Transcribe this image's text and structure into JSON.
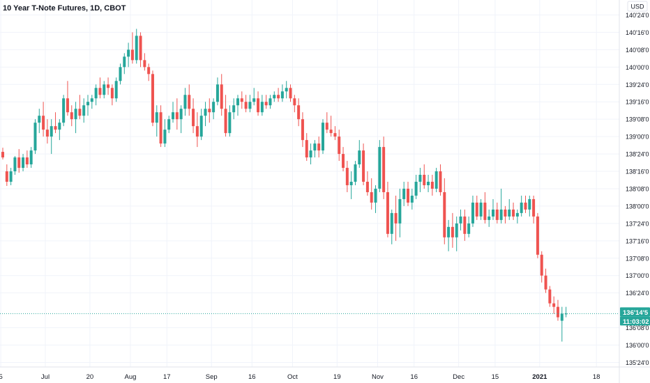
{
  "header": {
    "title": "10 Year T-Note Futures, 1D, CBOT",
    "currency": "USD"
  },
  "colors": {
    "up": "#26a69a",
    "down": "#ef5350",
    "grid": "#f0f3fa",
    "axis_border": "#e0e3eb",
    "price_line": "#26a69a",
    "price_tag_bg": "#26a69a",
    "tag_text": "#ffffff"
  },
  "price_tag": {
    "price": "136'14'5",
    "countdown": "11:03:02"
  },
  "chart_data": {
    "type": "candlestick",
    "title": "10 Year T-Note Futures, 1D, CBOT",
    "y_unit": "32nds",
    "ylim": [
      135.6,
      140.875
    ],
    "y_ticks": [
      {
        "value": 135.75,
        "label": "135'24'0"
      },
      {
        "value": 136.0,
        "label": "136'00'0"
      },
      {
        "value": 136.25,
        "label": "136'08'0"
      },
      {
        "value": 136.75,
        "label": "136'24'0"
      },
      {
        "value": 137.0,
        "label": "137'00'0"
      },
      {
        "value": 137.25,
        "label": "137'08'0"
      },
      {
        "value": 137.5,
        "label": "137'16'0"
      },
      {
        "value": 137.75,
        "label": "137'24'0"
      },
      {
        "value": 138.0,
        "label": "138'00'0"
      },
      {
        "value": 138.25,
        "label": "138'08'0"
      },
      {
        "value": 138.5,
        "label": "138'16'0"
      },
      {
        "value": 138.75,
        "label": "138'24'0"
      },
      {
        "value": 139.0,
        "label": "139'00'0"
      },
      {
        "value": 139.25,
        "label": "139'08'0"
      },
      {
        "value": 139.5,
        "label": "139'16'0"
      },
      {
        "value": 139.75,
        "label": "139'24'0"
      },
      {
        "value": 140.0,
        "label": "140'00'0"
      },
      {
        "value": 140.25,
        "label": "140'08'0"
      },
      {
        "value": 140.5,
        "label": "140'16'0"
      },
      {
        "value": 140.75,
        "label": "140'24'0"
      }
    ],
    "x_ticks": [
      {
        "index": -0.5,
        "label": "5",
        "bold": false
      },
      {
        "index": 10.5,
        "label": "Jul",
        "bold": false
      },
      {
        "index": 21.5,
        "label": "20",
        "bold": false
      },
      {
        "index": 31.5,
        "label": "Aug",
        "bold": false
      },
      {
        "index": 40.5,
        "label": "17",
        "bold": false
      },
      {
        "index": 51.5,
        "label": "Sep",
        "bold": false
      },
      {
        "index": 61.5,
        "label": "16",
        "bold": false
      },
      {
        "index": 71.5,
        "label": "Oct",
        "bold": false
      },
      {
        "index": 82.5,
        "label": "19",
        "bold": false
      },
      {
        "index": 92.5,
        "label": "Nov",
        "bold": false
      },
      {
        "index": 101.5,
        "label": "16",
        "bold": false
      },
      {
        "index": 112.5,
        "label": "Dec",
        "bold": false
      },
      {
        "index": 121.5,
        "label": "15",
        "bold": false
      },
      {
        "index": 132.5,
        "label": "2021",
        "bold": true
      },
      {
        "index": 146.5,
        "label": "18",
        "bold": false
      }
    ],
    "last_price_value": 136.453,
    "candles": [
      [
        138.78,
        138.84,
        138.67,
        138.7
      ],
      [
        138.5,
        138.6,
        138.29,
        138.35
      ],
      [
        138.35,
        138.55,
        138.3,
        138.5
      ],
      [
        138.5,
        138.72,
        138.45,
        138.7
      ],
      [
        138.7,
        138.82,
        138.48,
        138.55
      ],
      [
        138.55,
        138.75,
        138.5,
        138.7
      ],
      [
        138.7,
        138.8,
        138.55,
        138.6
      ],
      [
        138.6,
        138.85,
        138.55,
        138.8
      ],
      [
        138.8,
        139.25,
        138.75,
        139.2
      ],
      [
        139.2,
        139.4,
        139.05,
        139.3
      ],
      [
        139.3,
        139.5,
        139.0,
        139.1
      ],
      [
        139.1,
        139.25,
        138.9,
        139.0
      ],
      [
        139.0,
        139.25,
        138.75,
        139.15
      ],
      [
        139.15,
        139.35,
        139.05,
        139.1
      ],
      [
        139.1,
        139.25,
        138.95,
        139.2
      ],
      [
        139.2,
        139.6,
        139.15,
        139.55
      ],
      [
        139.55,
        139.8,
        139.3,
        139.35
      ],
      [
        139.35,
        139.45,
        139.15,
        139.25
      ],
      [
        139.25,
        139.5,
        139.05,
        139.4
      ],
      [
        139.4,
        139.6,
        139.25,
        139.3
      ],
      [
        139.3,
        139.55,
        139.2,
        139.45
      ],
      [
        139.45,
        139.6,
        139.3,
        139.5
      ],
      [
        139.5,
        139.6,
        139.4,
        139.55
      ],
      [
        139.55,
        139.75,
        139.45,
        139.7
      ],
      [
        139.7,
        139.85,
        139.55,
        139.6
      ],
      [
        139.6,
        139.8,
        139.55,
        139.75
      ],
      [
        139.75,
        139.85,
        139.6,
        139.7
      ],
      [
        139.7,
        139.75,
        139.45,
        139.55
      ],
      [
        139.55,
        139.85,
        139.5,
        139.8
      ],
      [
        139.8,
        140.05,
        139.75,
        140.0
      ],
      [
        140.0,
        140.2,
        139.9,
        140.15
      ],
      [
        140.15,
        140.35,
        140.0,
        140.25
      ],
      [
        140.25,
        140.5,
        140.05,
        140.1
      ],
      [
        140.1,
        140.55,
        140.05,
        140.45
      ],
      [
        140.45,
        140.5,
        140.0,
        140.1
      ],
      [
        140.1,
        140.2,
        139.95,
        140.0
      ],
      [
        140.0,
        140.05,
        139.8,
        139.9
      ],
      [
        139.9,
        139.95,
        139.15,
        139.2
      ],
      [
        139.2,
        139.45,
        139.0,
        139.35
      ],
      [
        139.35,
        139.45,
        138.85,
        138.9
      ],
      [
        138.9,
        139.25,
        138.85,
        139.1
      ],
      [
        139.1,
        139.3,
        139.05,
        139.25
      ],
      [
        139.25,
        139.5,
        139.2,
        139.35
      ],
      [
        139.35,
        139.55,
        139.1,
        139.25
      ],
      [
        139.25,
        139.45,
        139.05,
        139.4
      ],
      [
        139.4,
        139.7,
        139.3,
        139.6
      ],
      [
        139.6,
        139.75,
        139.3,
        139.4
      ],
      [
        139.4,
        139.55,
        139.05,
        139.15
      ],
      [
        139.15,
        139.35,
        138.85,
        139.0
      ],
      [
        139.0,
        139.4,
        138.95,
        139.3
      ],
      [
        139.3,
        139.5,
        139.15,
        139.4
      ],
      [
        139.4,
        139.55,
        139.2,
        139.35
      ],
      [
        139.35,
        139.55,
        139.25,
        139.5
      ],
      [
        139.5,
        139.85,
        139.45,
        139.75
      ],
      [
        139.75,
        139.9,
        139.3,
        139.4
      ],
      [
        139.4,
        139.6,
        139.0,
        139.05
      ],
      [
        139.05,
        139.45,
        139.0,
        139.35
      ],
      [
        139.35,
        139.55,
        139.25,
        139.45
      ],
      [
        139.45,
        139.6,
        139.3,
        139.55
      ],
      [
        139.55,
        139.65,
        139.4,
        139.5
      ],
      [
        139.5,
        139.6,
        139.35,
        139.4
      ],
      [
        139.4,
        139.6,
        139.35,
        139.5
      ],
      [
        139.5,
        139.7,
        139.45,
        139.55
      ],
      [
        139.55,
        139.65,
        139.3,
        139.35
      ],
      [
        139.35,
        139.6,
        139.3,
        139.5
      ],
      [
        139.5,
        139.6,
        139.4,
        139.45
      ],
      [
        139.45,
        139.6,
        139.4,
        139.55
      ],
      [
        139.55,
        139.65,
        139.5,
        139.6
      ],
      [
        139.6,
        139.7,
        139.5,
        139.55
      ],
      [
        139.55,
        139.75,
        139.5,
        139.65
      ],
      [
        139.65,
        139.8,
        139.55,
        139.7
      ],
      [
        139.7,
        139.75,
        139.5,
        139.55
      ],
      [
        139.55,
        139.6,
        139.35,
        139.45
      ],
      [
        139.45,
        139.55,
        139.15,
        139.25
      ],
      [
        139.25,
        139.35,
        138.85,
        138.95
      ],
      [
        138.95,
        139.05,
        138.65,
        138.7
      ],
      [
        138.7,
        138.9,
        138.6,
        138.8
      ],
      [
        138.8,
        138.95,
        138.7,
        138.9
      ],
      [
        138.9,
        139.0,
        138.7,
        138.8
      ],
      [
        138.8,
        139.25,
        138.75,
        139.2
      ],
      [
        139.2,
        139.35,
        139.05,
        139.1
      ],
      [
        139.1,
        139.3,
        139.0,
        139.05
      ],
      [
        139.05,
        139.15,
        138.95,
        139.0
      ],
      [
        139.0,
        139.1,
        138.65,
        138.75
      ],
      [
        138.75,
        138.85,
        138.5,
        138.55
      ],
      [
        138.55,
        138.65,
        138.2,
        138.3
      ],
      [
        138.3,
        138.5,
        138.1,
        138.35
      ],
      [
        138.35,
        138.65,
        138.3,
        138.6
      ],
      [
        138.6,
        138.95,
        138.55,
        138.8
      ],
      [
        138.8,
        138.9,
        138.3,
        138.35
      ],
      [
        138.35,
        138.5,
        138.15,
        138.2
      ],
      [
        138.2,
        138.4,
        137.95,
        138.05
      ],
      [
        138.05,
        138.3,
        137.9,
        138.25
      ],
      [
        138.25,
        138.95,
        138.2,
        138.85
      ],
      [
        138.85,
        139.0,
        138.1,
        138.2
      ],
      [
        138.2,
        138.35,
        137.55,
        137.6
      ],
      [
        137.6,
        137.95,
        137.45,
        137.9
      ],
      [
        137.9,
        138.15,
        137.5,
        137.75
      ],
      [
        137.75,
        138.25,
        137.55,
        138.1
      ],
      [
        138.1,
        138.35,
        138.0,
        138.25
      ],
      [
        138.25,
        138.35,
        138.0,
        138.05
      ],
      [
        138.05,
        138.25,
        137.95,
        138.15
      ],
      [
        138.15,
        138.45,
        138.1,
        138.35
      ],
      [
        138.35,
        138.55,
        138.2,
        138.45
      ],
      [
        138.45,
        138.6,
        138.25,
        138.3
      ],
      [
        138.3,
        138.45,
        138.2,
        138.35
      ],
      [
        138.35,
        138.45,
        138.15,
        138.25
      ],
      [
        138.25,
        138.55,
        138.2,
        138.5
      ],
      [
        138.5,
        138.6,
        138.15,
        138.2
      ],
      [
        138.2,
        138.4,
        137.45,
        137.55
      ],
      [
        137.55,
        137.8,
        137.35,
        137.7
      ],
      [
        137.7,
        137.9,
        137.4,
        137.55
      ],
      [
        137.55,
        137.85,
        137.35,
        137.75
      ],
      [
        137.75,
        137.95,
        137.65,
        137.85
      ],
      [
        137.85,
        137.95,
        137.5,
        137.6
      ],
      [
        137.6,
        137.85,
        137.55,
        137.75
      ],
      [
        137.75,
        138.15,
        137.7,
        138.05
      ],
      [
        138.05,
        138.15,
        137.8,
        137.85
      ],
      [
        137.85,
        138.1,
        137.8,
        138.05
      ],
      [
        138.05,
        138.2,
        137.75,
        137.8
      ],
      [
        137.8,
        137.95,
        137.7,
        137.85
      ],
      [
        137.85,
        138.1,
        137.8,
        137.95
      ],
      [
        137.95,
        138.05,
        137.75,
        137.8
      ],
      [
        137.8,
        138.25,
        137.75,
        137.95
      ],
      [
        137.95,
        138.0,
        137.75,
        137.85
      ],
      [
        137.85,
        138.1,
        137.8,
        137.95
      ],
      [
        137.95,
        138.05,
        137.8,
        137.85
      ],
      [
        137.85,
        137.95,
        137.75,
        137.9
      ],
      [
        137.9,
        138.15,
        137.85,
        138.05
      ],
      [
        138.05,
        138.15,
        137.9,
        137.95
      ],
      [
        137.95,
        138.15,
        137.85,
        138.1
      ],
      [
        138.1,
        138.15,
        137.75,
        137.85
      ],
      [
        137.85,
        137.9,
        137.25,
        137.3
      ],
      [
        137.3,
        137.35,
        136.9,
        137.0
      ],
      [
        137.0,
        137.1,
        136.75,
        136.8
      ],
      [
        136.8,
        136.85,
        136.55,
        136.6
      ],
      [
        136.6,
        136.7,
        136.45,
        136.55
      ],
      [
        136.55,
        136.65,
        136.35,
        136.4
      ],
      [
        136.35,
        136.55,
        136.05,
        136.45
      ],
      [
        136.45,
        136.55,
        136.4,
        136.453
      ]
    ]
  }
}
